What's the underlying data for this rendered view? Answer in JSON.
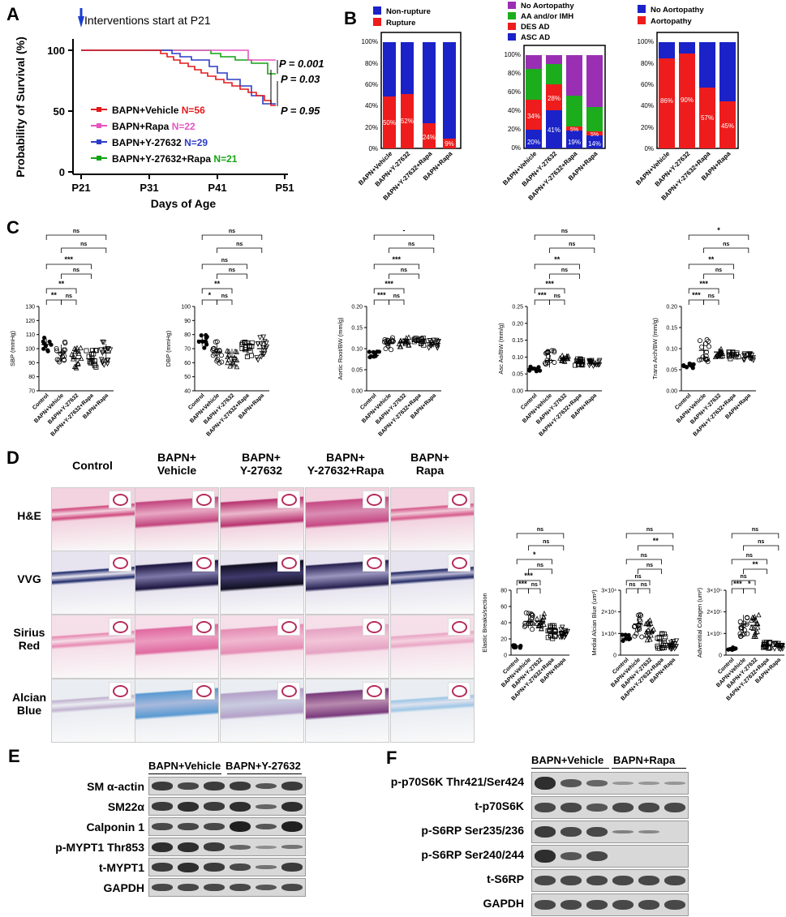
{
  "panels": {
    "A": "A",
    "B": "B",
    "C": "C",
    "D": "D",
    "E": "E",
    "F": "F"
  },
  "panel_a": {
    "arrow_text": "Interventions start at P21",
    "ylabel": "Probability of Survival (%)",
    "xlabel": "Days of Age",
    "yticks": [
      "0",
      "50",
      "100"
    ],
    "xticks": [
      "P21",
      "P31",
      "P41",
      "P51"
    ],
    "pvalues": [
      "P = 0.001",
      "P = 0.03",
      "P = 0.95"
    ],
    "legend": [
      {
        "name": "BAPN+Vehicle ",
        "n": "N=56",
        "color": "#e31a1c"
      },
      {
        "name": "BAPN+Rapa ",
        "n": "N=22",
        "color": "#e754c0"
      },
      {
        "name": "BAPN+Y-27632 ",
        "n": "N=29",
        "color": "#2c3cc7"
      },
      {
        "name": "BAPN+Y-27632+Rapa ",
        "n": "N=21",
        "color": "#14a314"
      }
    ]
  },
  "panel_b": {
    "legend1": [
      "Non-rupture",
      "Rupture"
    ],
    "legend2": [
      "No Aortopathy",
      "AA and/or IMH",
      "DES AD",
      "ASC AD"
    ],
    "legend3": [
      "No Aortopathy",
      "Aortopathy"
    ],
    "yticks": [
      "0%",
      "20%",
      "40%",
      "60%",
      "80%",
      "100%"
    ],
    "groups": [
      "BAPN+Vehicle",
      "BAPN+Y-27632",
      "BAPN+Y-27632+Rapa",
      "BAPN+Rapa"
    ],
    "bar1_labels": [
      "50%",
      "52%",
      "24%",
      "9%"
    ],
    "bar2_labels_top": [
      "34%",
      "28%",
      "5%",
      "5%"
    ],
    "bar2_labels_bottom": [
      "20%",
      "41%",
      "19%",
      "14%"
    ],
    "bar3_labels": [
      "86%",
      "90%",
      "57%",
      "45%"
    ],
    "colors": {
      "blue": "#1a22c8",
      "red": "#ee1c1c",
      "green": "#1cad1c",
      "purple": "#9a2fb4"
    }
  },
  "panel_c": {
    "groups": [
      "Control",
      "BAPN+Vehicle",
      "BAPN+Y-27632",
      "BAPN+Y-27632+Rapa",
      "BAPN+Rapa"
    ],
    "plots": [
      {
        "ylabel": "SBP (mmHg)",
        "yticks": [
          "70",
          "80",
          "90",
          "100",
          "110",
          "120",
          "130"
        ],
        "sig": [
          "ns",
          "ns",
          "***",
          "ns",
          "**",
          "**",
          "ns"
        ]
      },
      {
        "ylabel": "DBP (mmHg)",
        "yticks": [
          "40",
          "50",
          "60",
          "70",
          "80",
          "90",
          "100"
        ],
        "sig": [
          "ns",
          "ns",
          "ns",
          "ns",
          "**",
          "*",
          "ns"
        ]
      },
      {
        "ylabel": "Aortic Root/BW (mm/g)",
        "yticks": [
          "0.00",
          "0.05",
          "0.10",
          "0.15",
          "0.20"
        ],
        "sig": [
          "-",
          "ns",
          "***",
          "ns",
          "***",
          "***",
          "ns"
        ]
      },
      {
        "ylabel": "Asc Ao/BW (mm/g)",
        "yticks": [
          "0.00",
          "0.05",
          "0.10",
          "0.15",
          "0.20",
          "0.25"
        ],
        "sig": [
          "ns",
          "ns",
          "**",
          "ns",
          "***",
          "***",
          "ns"
        ]
      },
      {
        "ylabel": "Trans Arch/BW (mm/g)",
        "yticks": [
          "0.00",
          "0.05",
          "0.10",
          "0.15",
          "0.20"
        ],
        "sig": [
          "*",
          "ns",
          "**",
          "ns",
          "***",
          "***",
          "ns"
        ]
      }
    ]
  },
  "panel_d": {
    "columns": [
      "Control",
      "BAPN+\nVehicle",
      "BAPN+\nY-27632",
      "BAPN+\nY-27632+Rapa",
      "BAPN+\nRapa"
    ],
    "rows": [
      "H&E",
      "VVG",
      "Sirius\nRed",
      "Alcian\nBlue"
    ],
    "plots": [
      {
        "ylabel": "Elastic Breaks/section",
        "yticks": [
          "0",
          "20",
          "40",
          "60",
          "80"
        ],
        "sig": [
          "ns",
          "ns",
          "*",
          "ns",
          "***",
          "***",
          "ns"
        ]
      },
      {
        "ylabel": "Medial Alcian Blue (um²)",
        "yticks": [
          "0",
          "1×10⁴",
          "2×10⁴",
          "3×10⁴"
        ],
        "sig": [
          "ns",
          "**",
          "ns",
          "ns",
          "ns",
          "ns",
          "ns"
        ]
      },
      {
        "ylabel": "Adventitial Collagen (um²)",
        "yticks": [
          "0",
          "1×10⁵",
          "2×10⁵",
          "3×10⁵"
        ],
        "sig": [
          "ns",
          "ns",
          "ns",
          "**",
          "ns",
          "***",
          "*"
        ]
      }
    ]
  },
  "panel_e": {
    "header1": "BAPN+Vehicle",
    "header2": "BAPN+Y-27632",
    "rows": [
      "SM α-actin",
      "SM22α",
      "Calponin 1",
      "p-MYPT1 Thr853",
      "t-MYPT1",
      "GAPDH"
    ]
  },
  "panel_f": {
    "header1": "BAPN+Vehicle",
    "header2": "BAPN+Rapa",
    "rows": [
      "p-p70S6K Thr421/Ser424",
      "t-p70S6K",
      "p-S6RP Ser235/236",
      "p-S6RP Ser240/244",
      "t-S6RP",
      "GAPDH"
    ]
  }
}
